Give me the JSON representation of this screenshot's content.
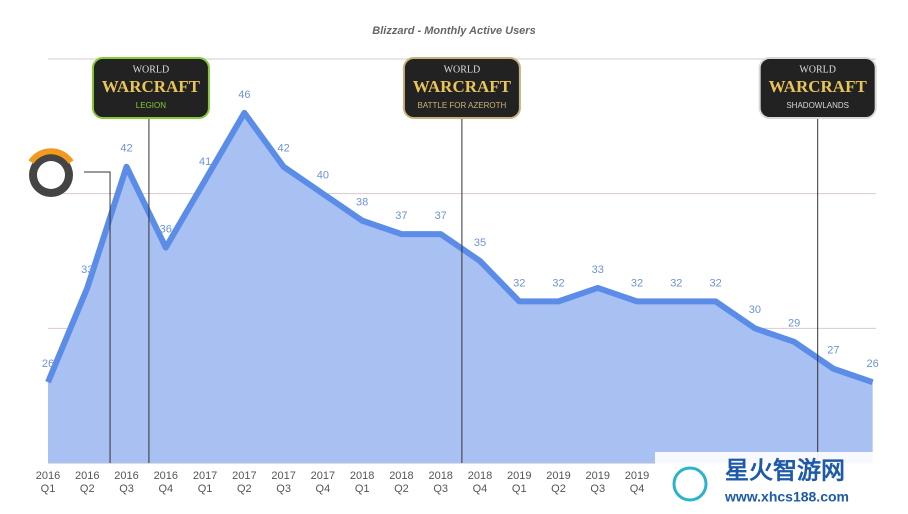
{
  "chart_data": {
    "type": "area",
    "title": "Blizzard - Monthly Active Users",
    "categories": [
      [
        "2016",
        "Q1"
      ],
      [
        "2016",
        "Q2"
      ],
      [
        "2016",
        "Q3"
      ],
      [
        "2016",
        "Q4"
      ],
      [
        "2017",
        "Q1"
      ],
      [
        "2017",
        "Q2"
      ],
      [
        "2017",
        "Q3"
      ],
      [
        "2017",
        "Q4"
      ],
      [
        "2018",
        "Q1"
      ],
      [
        "2018",
        "Q2"
      ],
      [
        "2018",
        "Q3"
      ],
      [
        "2018",
        "Q4"
      ],
      [
        "2019",
        "Q1"
      ],
      [
        "2019",
        "Q2"
      ],
      [
        "2019",
        "Q3"
      ],
      [
        "2019",
        "Q4"
      ],
      null,
      null,
      null,
      null,
      null,
      null
    ],
    "values": [
      26,
      33,
      42,
      36,
      41,
      46,
      42,
      40,
      38,
      37,
      37,
      35,
      32,
      32,
      33,
      32,
      32,
      32,
      30,
      29,
      27,
      26
    ],
    "color": "#5b8de8",
    "fill": "#a9c0f2",
    "ylim": [
      20,
      50
    ],
    "yticks": [
      20,
      30,
      40,
      50
    ],
    "grid": true,
    "annotations": [
      {
        "x": 1.58
      },
      {
        "x": 2.57,
        "lines": [
          "WORLD",
          "WARCRAFT",
          "LEGION"
        ],
        "color": "#86c93a"
      },
      {
        "x": 10.54,
        "lines": [
          "WORLD",
          "WARCRAFT",
          "BATTLE FOR AZEROTH"
        ],
        "color": "#c9b27a"
      },
      {
        "x": 19.6,
        "lines": [
          "WORLD",
          "WARCRAFT",
          "SHADOWLANDS"
        ],
        "color": "#d8d8d8"
      }
    ],
    "watermark": [
      "星火智游网",
      "www.xhcs188.com"
    ]
  }
}
